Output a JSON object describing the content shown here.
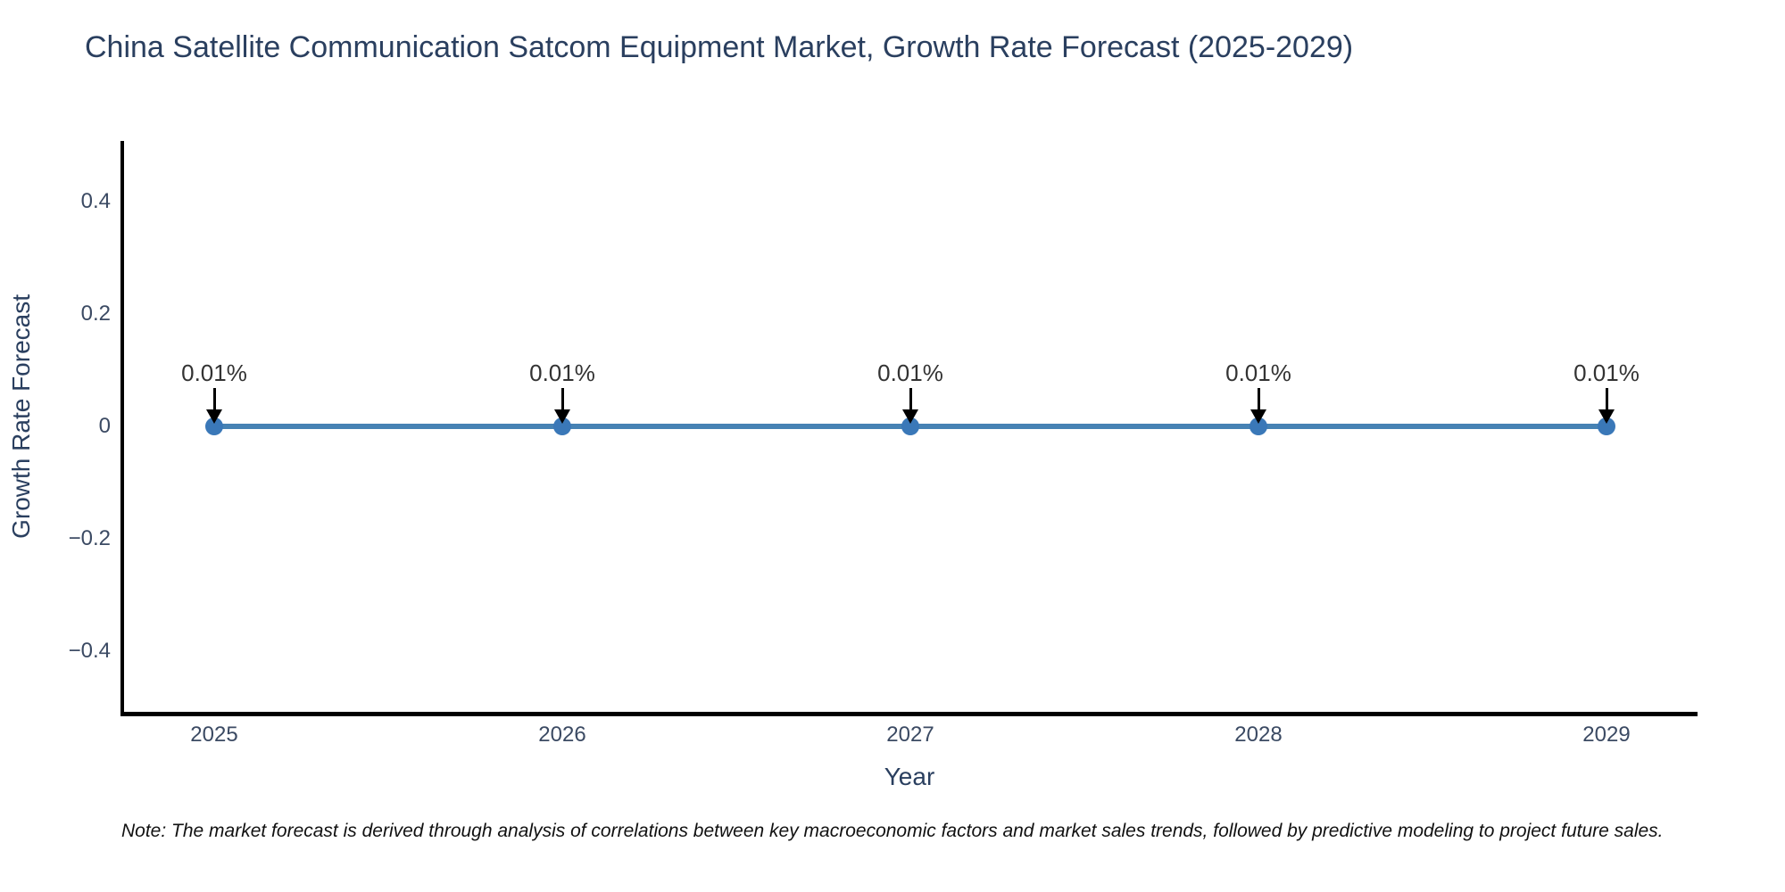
{
  "title": "China Satellite Communication Satcom Equipment Market, Growth Rate Forecast (2025-2029)",
  "note": "Note: The market forecast is derived through analysis of correlations between key macroeconomic factors and market sales trends, followed by predictive modeling to project future sales.",
  "chart_data": {
    "type": "line",
    "title": "China Satellite Communication Satcom Equipment Market, Growth Rate Forecast (2025-2029)",
    "xlabel": "Year",
    "ylabel": "Growth Rate Forecast",
    "x": [
      2025,
      2026,
      2027,
      2028,
      2029
    ],
    "y": [
      0.01,
      0.01,
      0.01,
      0.01,
      0.01
    ],
    "point_labels": [
      "0.01%",
      "0.01%",
      "0.01%",
      "0.01%",
      "0.01%"
    ],
    "x_tick_labels": [
      "2025",
      "2026",
      "2027",
      "2028",
      "2029"
    ],
    "y_tick_labels": [
      "0.4",
      "0.2",
      "0",
      "−0.2",
      "−0.4"
    ],
    "ylim": [
      -0.5,
      0.5
    ],
    "grid": false,
    "legend": false,
    "line_color": "#4682b4",
    "marker_color": "#3a78b8",
    "axis_color": "#000000",
    "title_color": "#2a3f5f",
    "annotation_arrow_color": "#000000"
  }
}
